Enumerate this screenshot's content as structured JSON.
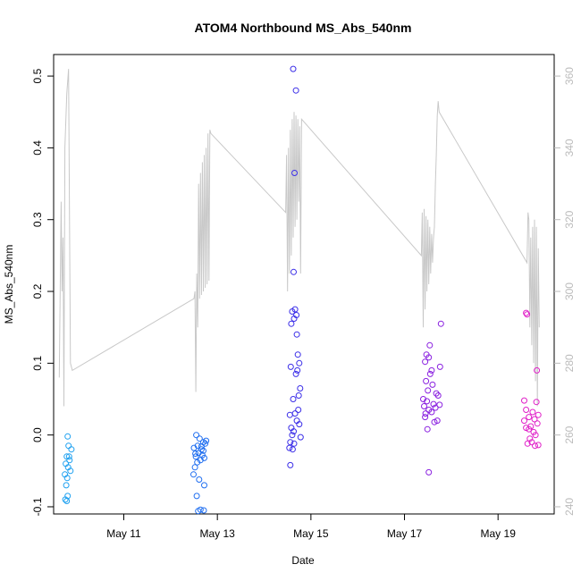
{
  "chart_data": {
    "type": "scatter",
    "title": "ATOM4 Northbound MS_Abs_540nm",
    "xlabel": "Date",
    "ylabel": "MS_Abs_540nm",
    "x_tick_labels": [
      "May 11",
      "May 13",
      "May 15",
      "May 17",
      "May 19"
    ],
    "x_tick_days": [
      11,
      13,
      15,
      17,
      19
    ],
    "x_unit": "day of May",
    "xlim": [
      9.5,
      20.2
    ],
    "ylim": [
      -0.11,
      0.53
    ],
    "y_ticks": [
      -0.1,
      0.0,
      0.1,
      0.2,
      0.3,
      0.4,
      0.5
    ],
    "y_tick_labels": [
      "-0.1",
      "0.0",
      "0.1",
      "0.2",
      "0.3",
      "0.4",
      "0.5"
    ],
    "y2_ticks": [
      240,
      260,
      280,
      300,
      320,
      340,
      360
    ],
    "y2_tick_labels": [
      "240",
      "260",
      "280",
      "300",
      "320",
      "340",
      "360"
    ],
    "y2lim": [
      238,
      366
    ],
    "grid": false,
    "line_color": "#c8c8c8",
    "series": [
      {
        "color": "#1ea0f0",
        "points": [
          [
            9.8,
            -0.002
          ],
          [
            9.82,
            -0.015
          ],
          [
            9.78,
            -0.03
          ],
          [
            9.84,
            -0.035
          ],
          [
            9.76,
            -0.04
          ],
          [
            9.81,
            -0.045
          ],
          [
            9.86,
            -0.05
          ],
          [
            9.74,
            -0.055
          ],
          [
            9.79,
            -0.06
          ],
          [
            9.83,
            -0.03
          ],
          [
            9.77,
            -0.07
          ],
          [
            9.8,
            -0.085
          ],
          [
            9.75,
            -0.09
          ],
          [
            9.78,
            -0.092
          ],
          [
            9.88,
            -0.02
          ]
        ]
      },
      {
        "color": "#1f6ef0",
        "points": [
          [
            12.55,
            0.0
          ],
          [
            12.62,
            -0.005
          ],
          [
            12.7,
            -0.01
          ],
          [
            12.58,
            -0.015
          ],
          [
            12.66,
            -0.02
          ],
          [
            12.74,
            -0.012
          ],
          [
            12.5,
            -0.018
          ],
          [
            12.6,
            -0.025
          ],
          [
            12.68,
            -0.028
          ],
          [
            12.54,
            -0.03
          ],
          [
            12.72,
            -0.032
          ],
          [
            12.64,
            -0.035
          ],
          [
            12.57,
            -0.038
          ],
          [
            12.7,
            -0.022
          ],
          [
            12.52,
            -0.045
          ],
          [
            12.49,
            -0.055
          ],
          [
            12.61,
            -0.062
          ],
          [
            12.72,
            -0.07
          ],
          [
            12.56,
            -0.085
          ],
          [
            12.59,
            -0.106
          ],
          [
            12.64,
            -0.104
          ],
          [
            12.71,
            -0.105
          ],
          [
            12.76,
            -0.008
          ],
          [
            12.66,
            -0.016
          ],
          [
            12.53,
            -0.026
          ]
        ]
      },
      {
        "color": "#3b2ee8",
        "points": [
          [
            14.62,
            0.51
          ],
          [
            14.68,
            0.48
          ],
          [
            14.65,
            0.365
          ],
          [
            14.63,
            0.227
          ],
          [
            14.66,
            0.175
          ],
          [
            14.6,
            0.172
          ],
          [
            14.69,
            0.167
          ],
          [
            14.64,
            0.162
          ],
          [
            14.58,
            0.155
          ],
          [
            14.7,
            0.14
          ],
          [
            14.72,
            0.112
          ],
          [
            14.75,
            0.1
          ],
          [
            14.57,
            0.095
          ],
          [
            14.68,
            0.085
          ],
          [
            14.71,
            0.09
          ],
          [
            14.77,
            0.065
          ],
          [
            14.74,
            0.055
          ],
          [
            14.62,
            0.05
          ],
          [
            14.73,
            0.035
          ],
          [
            14.66,
            0.03
          ],
          [
            14.55,
            0.028
          ],
          [
            14.7,
            0.02
          ],
          [
            14.75,
            0.015
          ],
          [
            14.58,
            0.01
          ],
          [
            14.63,
            0.005
          ],
          [
            14.6,
            0.0
          ],
          [
            14.78,
            -0.003
          ],
          [
            14.56,
            -0.01
          ],
          [
            14.64,
            -0.012
          ],
          [
            14.54,
            -0.018
          ],
          [
            14.61,
            -0.02
          ],
          [
            14.56,
            -0.042
          ]
        ]
      },
      {
        "color": "#8a20e0",
        "points": [
          [
            17.78,
            0.155
          ],
          [
            17.54,
            0.125
          ],
          [
            17.47,
            0.112
          ],
          [
            17.52,
            0.108
          ],
          [
            17.44,
            0.102
          ],
          [
            17.76,
            0.095
          ],
          [
            17.58,
            0.09
          ],
          [
            17.55,
            0.085
          ],
          [
            17.46,
            0.075
          ],
          [
            17.6,
            0.07
          ],
          [
            17.5,
            0.062
          ],
          [
            17.68,
            0.058
          ],
          [
            17.72,
            0.055
          ],
          [
            17.4,
            0.05
          ],
          [
            17.48,
            0.047
          ],
          [
            17.62,
            0.043
          ],
          [
            17.42,
            0.04
          ],
          [
            17.75,
            0.042
          ],
          [
            17.66,
            0.038
          ],
          [
            17.52,
            0.035
          ],
          [
            17.58,
            0.032
          ],
          [
            17.45,
            0.03
          ],
          [
            17.44,
            0.025
          ],
          [
            17.7,
            0.02
          ],
          [
            17.64,
            0.018
          ],
          [
            17.49,
            0.008
          ],
          [
            17.52,
            -0.052
          ]
        ]
      },
      {
        "color": "#e020c8",
        "points": [
          [
            19.6,
            0.17
          ],
          [
            19.62,
            0.168
          ],
          [
            19.83,
            0.09
          ],
          [
            19.56,
            0.048
          ],
          [
            19.82,
            0.046
          ],
          [
            19.6,
            0.035
          ],
          [
            19.74,
            0.032
          ],
          [
            19.86,
            0.028
          ],
          [
            19.66,
            0.025
          ],
          [
            19.78,
            0.022
          ],
          [
            19.56,
            0.02
          ],
          [
            19.84,
            0.016
          ],
          [
            19.7,
            0.012
          ],
          [
            19.6,
            0.01
          ],
          [
            19.66,
            0.008
          ],
          [
            19.76,
            0.004
          ],
          [
            19.8,
            0.0
          ],
          [
            19.68,
            -0.005
          ],
          [
            19.72,
            -0.01
          ],
          [
            19.86,
            -0.014
          ],
          [
            19.79,
            -0.015
          ],
          [
            19.63,
            -0.012
          ]
        ]
      }
    ],
    "line_series": {
      "axis": "right",
      "points": [
        [
          9.62,
          276
        ],
        [
          9.66,
          325
        ],
        [
          9.68,
          300
        ],
        [
          9.7,
          315
        ],
        [
          9.72,
          268
        ],
        [
          9.74,
          340
        ],
        [
          9.78,
          355
        ],
        [
          9.82,
          362
        ],
        [
          9.86,
          280
        ],
        [
          9.9,
          278
        ],
        [
          12.5,
          298
        ],
        [
          12.52,
          300
        ],
        [
          12.54,
          272
        ],
        [
          12.56,
          305
        ],
        [
          12.58,
          290
        ],
        [
          12.6,
          330
        ],
        [
          12.62,
          298
        ],
        [
          12.64,
          333
        ],
        [
          12.66,
          299
        ],
        [
          12.68,
          336
        ],
        [
          12.7,
          300
        ],
        [
          12.72,
          338
        ],
        [
          12.74,
          301
        ],
        [
          12.76,
          340
        ],
        [
          12.78,
          302
        ],
        [
          12.8,
          344
        ],
        [
          12.82,
          303
        ],
        [
          12.84,
          345
        ],
        [
          12.86,
          344
        ],
        [
          14.46,
          322
        ],
        [
          14.48,
          338
        ],
        [
          14.5,
          300
        ],
        [
          14.52,
          340
        ],
        [
          14.54,
          305
        ],
        [
          14.56,
          345
        ],
        [
          14.58,
          310
        ],
        [
          14.6,
          348
        ],
        [
          14.62,
          315
        ],
        [
          14.64,
          350
        ],
        [
          14.66,
          318
        ],
        [
          14.68,
          349
        ],
        [
          14.7,
          320
        ],
        [
          14.72,
          348
        ],
        [
          14.74,
          325
        ],
        [
          14.76,
          346
        ],
        [
          14.78,
          305
        ],
        [
          14.8,
          348
        ],
        [
          17.36,
          310
        ],
        [
          17.38,
          322
        ],
        [
          17.4,
          290
        ],
        [
          17.42,
          323
        ],
        [
          17.44,
          295
        ],
        [
          17.46,
          321
        ],
        [
          17.48,
          300
        ],
        [
          17.5,
          320
        ],
        [
          17.52,
          302
        ],
        [
          17.54,
          318
        ],
        [
          17.56,
          305
        ],
        [
          17.58,
          316
        ],
        [
          17.6,
          308
        ],
        [
          17.62,
          315
        ],
        [
          17.64,
          318
        ],
        [
          17.66,
          330
        ],
        [
          17.68,
          338
        ],
        [
          17.7,
          349
        ],
        [
          17.72,
          353
        ],
        [
          17.74,
          350
        ],
        [
          19.62,
          308
        ],
        [
          19.64,
          322
        ],
        [
          19.66,
          320
        ],
        [
          19.68,
          290
        ],
        [
          19.7,
          315
        ],
        [
          19.72,
          285
        ],
        [
          19.74,
          318
        ],
        [
          19.76,
          280
        ],
        [
          19.78,
          320
        ],
        [
          19.8,
          275
        ],
        [
          19.82,
          318
        ],
        [
          19.84,
          268
        ],
        [
          19.86,
          312
        ],
        [
          19.88,
          290
        ]
      ]
    }
  }
}
